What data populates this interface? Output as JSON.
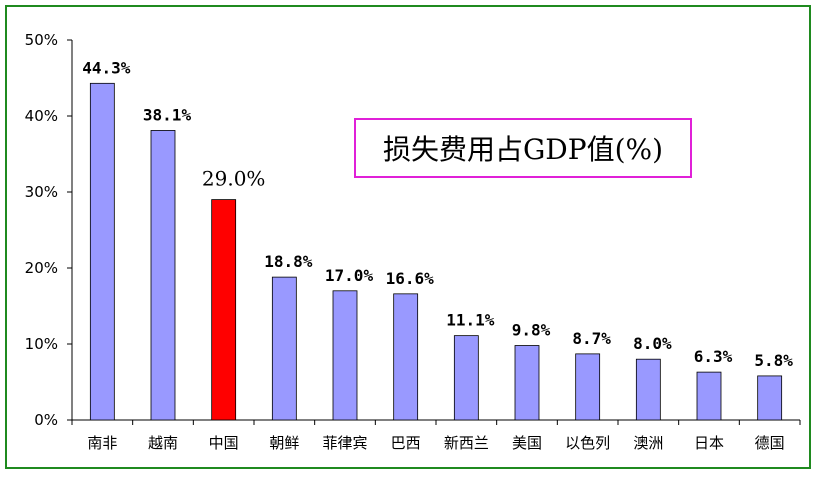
{
  "chart_data": {
    "type": "bar",
    "title": "损失费用占GDP值(%)",
    "categories": [
      "南非",
      "越南",
      "中国",
      "朝鲜",
      "菲律宾",
      "巴西",
      "新西兰",
      "美国",
      "以色列",
      "澳洲",
      "日本",
      "德国"
    ],
    "values": [
      44.3,
      38.1,
      29.0,
      18.8,
      17.0,
      16.6,
      11.1,
      9.8,
      8.7,
      8.0,
      6.3,
      5.8
    ],
    "data_labels": [
      "44.3%",
      "38.1%",
      "29.0%",
      "18.8%",
      "17.0%",
      "16.6%",
      "11.1%",
      "9.8%",
      "8.7%",
      "8.0%",
      "6.3%",
      "5.8%"
    ],
    "y_ticks": [
      "0%",
      "10%",
      "20%",
      "30%",
      "40%",
      "50%"
    ],
    "ylim": [
      0,
      50
    ],
    "grid": false,
    "bar_color": "#9999ff",
    "highlight_color": "#ff0000",
    "highlight_label_color": "#993366",
    "highlight_index": 2
  }
}
